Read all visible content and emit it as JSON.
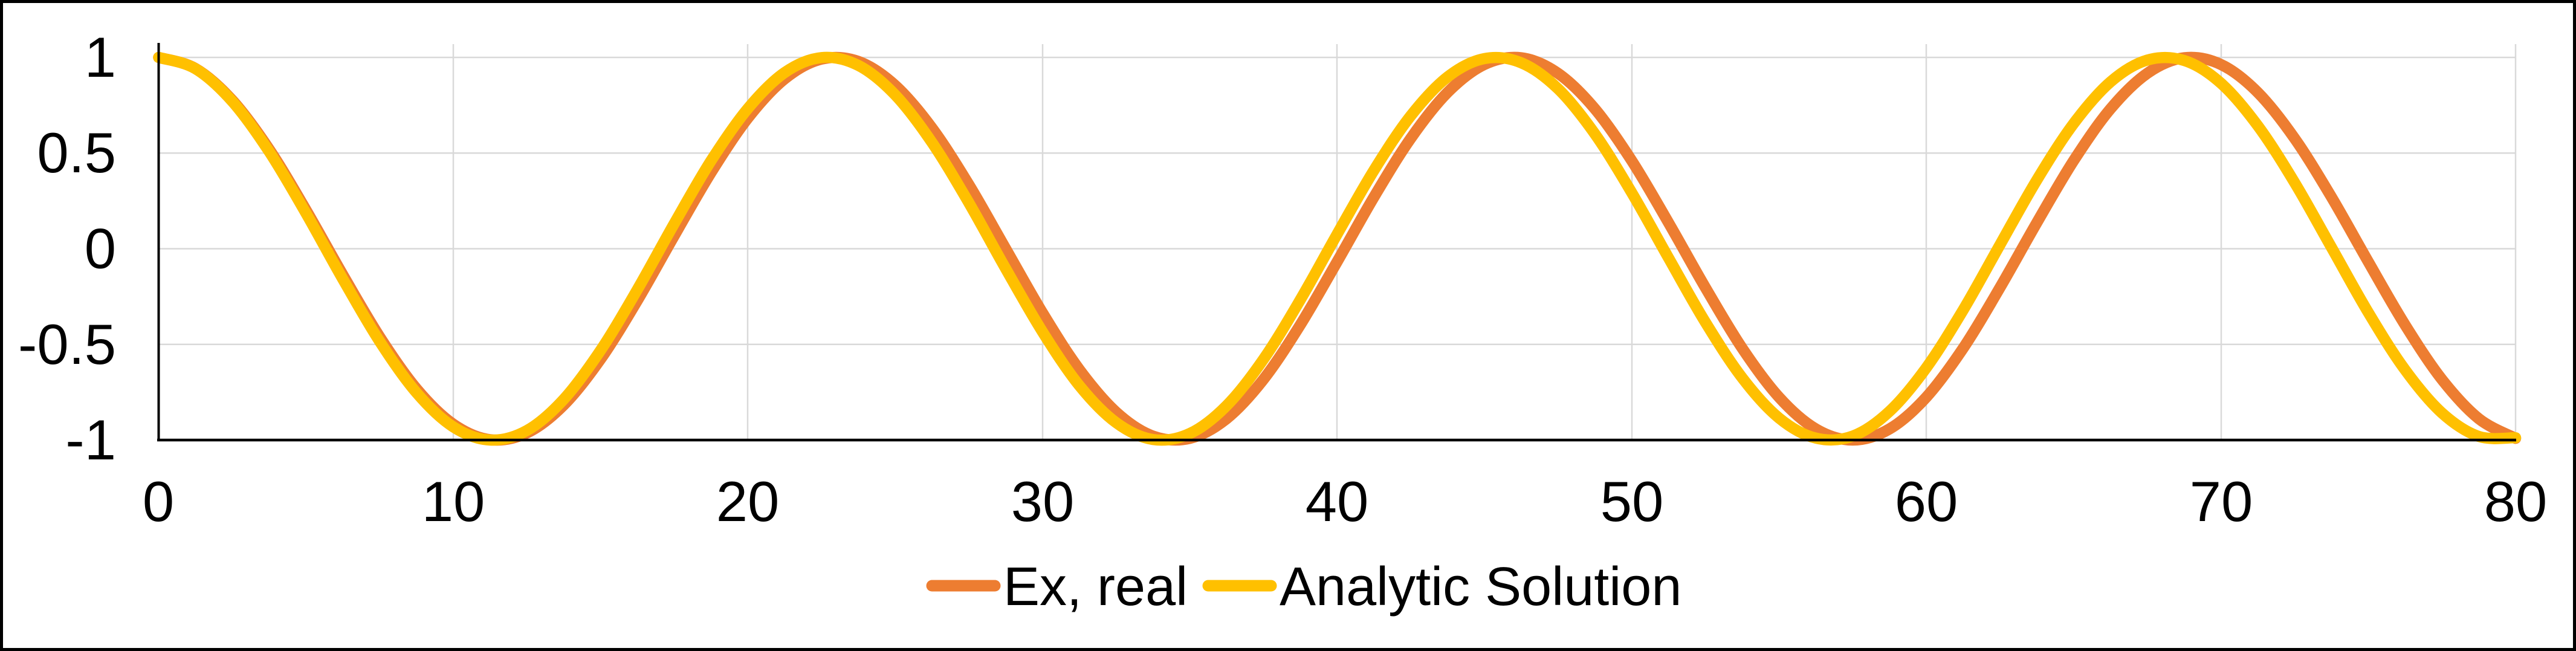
{
  "styles": {
    "background": "#FFFFFF",
    "border_color": "#000000",
    "axis_color": "#000000",
    "gridline_color": "#D9D9D9",
    "text_color": "#000000"
  },
  "chart_data": {
    "type": "line",
    "title": "",
    "xlabel": "",
    "ylabel": "",
    "xlim": [
      0,
      80
    ],
    "ylim": [
      -1,
      1
    ],
    "grid": {
      "horizontal": true,
      "vertical": true,
      "color": "#D9D9D9"
    },
    "legend_position": "bottom-center",
    "x_axis": {
      "min": 0,
      "max": 80,
      "tick_step": 10,
      "tick_labels": [
        "0",
        "10",
        "20",
        "30",
        "40",
        "50",
        "60",
        "70",
        "80"
      ]
    },
    "y_axis": {
      "min": -1,
      "max": 1,
      "tick_step": 0.5,
      "tick_labels": [
        "1",
        "0.5",
        "0",
        "-0.5",
        "-1"
      ]
    },
    "series": [
      {
        "name": "Ex, real",
        "color": "#ED7D31",
        "x_start": 0,
        "x_step": 1.25,
        "values": [
          1,
          0.942,
          0.776,
          0.52,
          0.203,
          -0.136,
          -0.46,
          -0.731,
          -0.917,
          -0.998,
          -0.963,
          -0.817,
          -0.577,
          -0.27,
          0.068,
          0.398,
          0.683,
          0.888,
          0.991,
          0.979,
          0.854,
          0.631,
          0.335,
          0,
          -0.335,
          -0.631,
          -0.854,
          -0.979,
          -0.991,
          -0.888,
          -0.683,
          -0.398,
          -0.068,
          0.27,
          0.577,
          0.817,
          0.963,
          0.998,
          0.917,
          0.731,
          0.46,
          0.136,
          -0.203,
          -0.52,
          -0.776,
          -0.942,
          -1,
          -0.942,
          -0.776,
          -0.52,
          -0.203,
          0.136,
          0.46,
          0.731,
          0.917,
          0.998,
          0.963,
          0.817,
          0.577,
          0.27,
          -0.068,
          -0.398,
          -0.683,
          -0.888,
          -0.991
        ]
      },
      {
        "name": "Analytic Solution",
        "color": "#FFC000",
        "x_start": 0,
        "x_step": 1.25,
        "values": [
          1,
          0.941,
          0.77,
          0.508,
          0.186,
          -0.158,
          -0.484,
          -0.752,
          -0.931,
          -1,
          -0.95,
          -0.787,
          -0.531,
          -0.213,
          0.131,
          0.46,
          0.733,
          0.921,
          0.999,
          0.958,
          0.804,
          0.555,
          0.24,
          -0.104,
          -0.434,
          -0.715,
          -0.909,
          -0.997,
          -0.966,
          -0.82,
          -0.578,
          -0.267,
          0.076,
          0.41,
          0.695,
          0.898,
          0.994,
          0.972,
          0.836,
          0.6,
          0.293,
          -0.048,
          -0.384,
          -0.675,
          -0.885,
          -0.99,
          -0.979,
          -0.85,
          -0.622,
          -0.32,
          0.021,
          0.359,
          0.654,
          0.872,
          0.986,
          0.984,
          0.865,
          0.643,
          0.346,
          0.007,
          -0.333,
          -0.633,
          -0.858,
          -0.981,
          -0.988
        ]
      }
    ]
  }
}
